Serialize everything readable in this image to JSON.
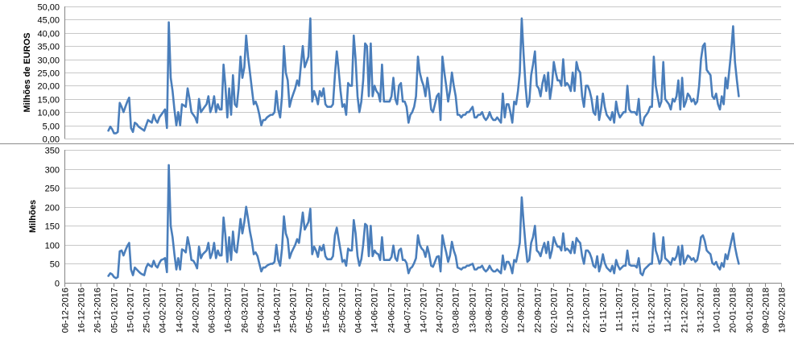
{
  "colors": {
    "series": "#4a7ebb",
    "grid": "#c8c8c8",
    "axis": "#868686",
    "divider": "#8c8c8c"
  },
  "chart_data": [
    {
      "type": "line",
      "title": "",
      "ylabel": "Milhões de EUROS",
      "ylim": [
        0,
        50
      ],
      "yticks": [
        "0,00",
        "5,00",
        "10,00",
        "15,00",
        "20,00",
        "25,00",
        "30,00",
        "35,00",
        "40,00",
        "45,00",
        "50,00"
      ],
      "grid": true,
      "series": [
        {
          "values": [
            3,
            4.5,
            3.5,
            2,
            2,
            2.5,
            13.5,
            12,
            10,
            12,
            14,
            15.5,
            4,
            2.5,
            6,
            5.5,
            4.5,
            4,
            3.5,
            3,
            5,
            7,
            6.5,
            6,
            9,
            7,
            6,
            8,
            9,
            10,
            11,
            4,
            44,
            23,
            18,
            11,
            5,
            10,
            5,
            13,
            12.5,
            12,
            19,
            15,
            10,
            9,
            8,
            6,
            15,
            10,
            11,
            12,
            13,
            16,
            10,
            12,
            16,
            10,
            13,
            11,
            11,
            28,
            20,
            8,
            19,
            9,
            24,
            13,
            12,
            19,
            31,
            23,
            27,
            39,
            31,
            25,
            19,
            13,
            14,
            12,
            9,
            5,
            7,
            7,
            8,
            8.5,
            9,
            9,
            10,
            18,
            11,
            8,
            16,
            35,
            25,
            22,
            12,
            15,
            17,
            19,
            22,
            20,
            28,
            35,
            27,
            29,
            31,
            45.5,
            14,
            18,
            16,
            13,
            18,
            16,
            19,
            13,
            12,
            12,
            12,
            13,
            24,
            33,
            26,
            18,
            12,
            13,
            9,
            21,
            20,
            20,
            39,
            30,
            16,
            10,
            14,
            22,
            36,
            35,
            16,
            36,
            16,
            20,
            18,
            17,
            14,
            28,
            14,
            14,
            14,
            14,
            16,
            23,
            15,
            13,
            20,
            21,
            14,
            14,
            12,
            6,
            9,
            10,
            12,
            16,
            31,
            25,
            22,
            20,
            16,
            23,
            18,
            11,
            10,
            13,
            16,
            17,
            7,
            31,
            25,
            20,
            14,
            18,
            25,
            20,
            16,
            9,
            9,
            8,
            9,
            9,
            10,
            10,
            11,
            12,
            8,
            8,
            9,
            9,
            10,
            8,
            7,
            8,
            10,
            8,
            7,
            7,
            8,
            7,
            6,
            17,
            8,
            13,
            13,
            10,
            6,
            14,
            13,
            18,
            25,
            45.5,
            32,
            20,
            12,
            14,
            24,
            28,
            33,
            20,
            19,
            16,
            21,
            24,
            18,
            25,
            15,
            20,
            29,
            25,
            22,
            22,
            20,
            30,
            20,
            21,
            20,
            18,
            25,
            18,
            29,
            26,
            25,
            16,
            12,
            20,
            20,
            18,
            15,
            10,
            9,
            16,
            7,
            11,
            17,
            12,
            9,
            8,
            7,
            10,
            6,
            14,
            10,
            8,
            9,
            10,
            10,
            20,
            11,
            10,
            10,
            10,
            9,
            15,
            6,
            5,
            8,
            9,
            10,
            12,
            12,
            31,
            20,
            16,
            12,
            14,
            29,
            15,
            14,
            13,
            11,
            15,
            14,
            16,
            22,
            11,
            23,
            12,
            14,
            17,
            16,
            14,
            15,
            13,
            14,
            20,
            30,
            35,
            36,
            26,
            25,
            24,
            16,
            15,
            17,
            13,
            11,
            16,
            13,
            23,
            19,
            26,
            33,
            42.5,
            29,
            22,
            16
          ]
        }
      ]
    },
    {
      "type": "line",
      "title": "",
      "ylabel": "Milhões",
      "ylim": [
        0,
        350
      ],
      "yticks": [
        "0",
        "50",
        "100",
        "150",
        "200",
        "250",
        "300",
        "350"
      ],
      "grid": true,
      "x_start": "06-12-2016",
      "x_end": "19-02-2018",
      "xticks": [
        "06-12-2016",
        "16-12-2016",
        "26-12-2016",
        "05-01-2017",
        "15-01-2017",
        "25-01-2017",
        "04-02-2017",
        "14-02-2017",
        "24-02-2017",
        "06-03-2017",
        "16-03-2017",
        "26-03-2017",
        "05-04-2017",
        "15-04-2017",
        "25-04-2017",
        "05-05-2017",
        "15-05-2017",
        "25-05-2017",
        "04-06-2017",
        "14-06-2017",
        "24-06-2017",
        "04-07-2017",
        "14-07-2017",
        "24-07-2017",
        "03-08-2017",
        "13-08-2017",
        "23-08-2017",
        "02-09-2017",
        "12-09-2017",
        "22-09-2017",
        "02-10-2017",
        "12-10-2017",
        "22-10-2017",
        "01-11-2017",
        "11-11-2017",
        "21-11-2017",
        "01-12-2017",
        "11-12-2017",
        "21-12-2017",
        "31-12-2017",
        "10-01-2018",
        "20-01-2018",
        "30-01-2018",
        "09-02-2018",
        "19-02-2018"
      ],
      "series": [
        {
          "values": [
            18,
            25,
            22,
            15,
            12,
            15,
            83,
            85,
            72,
            85,
            97,
            105,
            35,
            20,
            40,
            35,
            30,
            25,
            22,
            20,
            40,
            50,
            45,
            42,
            58,
            45,
            40,
            52,
            60,
            62,
            65,
            28,
            310,
            150,
            120,
            75,
            35,
            65,
            35,
            88,
            85,
            80,
            120,
            95,
            60,
            58,
            50,
            38,
            95,
            65,
            75,
            80,
            85,
            105,
            65,
            78,
            105,
            65,
            85,
            72,
            72,
            172,
            125,
            55,
            120,
            60,
            135,
            85,
            80,
            120,
            168,
            130,
            160,
            200,
            170,
            135,
            110,
            75,
            80,
            70,
            50,
            30,
            40,
            40,
            45,
            48,
            50,
            50,
            55,
            100,
            60,
            45,
            90,
            175,
            130,
            115,
            65,
            80,
            90,
            100,
            115,
            105,
            145,
            185,
            140,
            150,
            160,
            195,
            75,
            95,
            85,
            68,
            95,
            85,
            100,
            70,
            62,
            62,
            62,
            70,
            125,
            145,
            115,
            85,
            55,
            60,
            45,
            90,
            85,
            85,
            165,
            130,
            70,
            45,
            62,
            100,
            155,
            150,
            70,
            150,
            70,
            85,
            78,
            75,
            60,
            120,
            60,
            60,
            60,
            60,
            68,
            98,
            65,
            58,
            85,
            90,
            60,
            60,
            52,
            25,
            38,
            42,
            52,
            65,
            125,
            100,
            90,
            85,
            68,
            95,
            75,
            45,
            42,
            55,
            68,
            70,
            30,
            125,
            100,
            80,
            55,
            72,
            108,
            85,
            70,
            40,
            38,
            35,
            40,
            40,
            45,
            45,
            48,
            50,
            35,
            35,
            40,
            40,
            45,
            35,
            30,
            35,
            45,
            35,
            30,
            30,
            35,
            30,
            25,
            72,
            35,
            55,
            55,
            45,
            25,
            60,
            55,
            78,
            105,
            225,
            160,
            100,
            55,
            60,
            105,
            120,
            150,
            85,
            80,
            70,
            90,
            105,
            78,
            108,
            65,
            85,
            120,
            105,
            95,
            95,
            85,
            130,
            85,
            90,
            85,
            78,
            108,
            78,
            118,
            110,
            105,
            70,
            50,
            85,
            85,
            78,
            65,
            45,
            40,
            70,
            30,
            48,
            75,
            52,
            40,
            35,
            30,
            45,
            25,
            60,
            45,
            35,
            40,
            45,
            45,
            85,
            48,
            45,
            45,
            45,
            40,
            65,
            25,
            20,
            35,
            40,
            45,
            50,
            50,
            130,
            85,
            70,
            50,
            60,
            120,
            65,
            60,
            55,
            48,
            65,
            60,
            70,
            95,
            48,
            98,
            50,
            60,
            72,
            68,
            60,
            65,
            55,
            60,
            85,
            120,
            125,
            110,
            85,
            80,
            75,
            52,
            48,
            55,
            42,
            35,
            52,
            42,
            75,
            62,
            85,
            108,
            130,
            95,
            70,
            50
          ]
        }
      ]
    }
  ]
}
